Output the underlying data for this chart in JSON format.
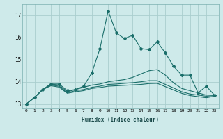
{
  "xlabel": "Humidex (Indice chaleur)",
  "ylabel": "",
  "bg_color": "#ceeaea",
  "grid_color": "#aacece",
  "line_color": "#1a6e6a",
  "xlim": [
    -0.5,
    23.5
  ],
  "ylim": [
    12.8,
    17.5
  ],
  "yticks": [
    13,
    14,
    15,
    16,
    17
  ],
  "xticks": [
    0,
    1,
    2,
    3,
    4,
    5,
    6,
    7,
    8,
    9,
    10,
    11,
    12,
    13,
    14,
    15,
    16,
    17,
    18,
    19,
    20,
    21,
    22,
    23
  ],
  "series": [
    [
      13.0,
      13.3,
      13.65,
      13.9,
      13.9,
      13.6,
      13.65,
      13.8,
      14.4,
      15.5,
      17.2,
      16.2,
      15.95,
      16.1,
      15.5,
      15.45,
      15.8,
      15.3,
      14.7,
      14.3,
      14.3,
      13.5,
      13.8,
      13.4
    ],
    [
      13.0,
      13.3,
      13.65,
      13.9,
      13.85,
      13.55,
      13.65,
      13.75,
      13.85,
      13.9,
      14.0,
      14.05,
      14.1,
      14.2,
      14.35,
      14.5,
      14.55,
      14.3,
      13.95,
      13.7,
      13.6,
      13.5,
      13.4,
      13.4
    ],
    [
      13.0,
      13.3,
      13.65,
      13.85,
      13.8,
      13.5,
      13.6,
      13.65,
      13.75,
      13.8,
      13.88,
      13.9,
      13.93,
      13.96,
      14.0,
      14.05,
      14.05,
      13.88,
      13.72,
      13.55,
      13.45,
      13.4,
      13.35,
      13.38
    ],
    [
      13.0,
      13.3,
      13.65,
      13.82,
      13.76,
      13.48,
      13.55,
      13.6,
      13.7,
      13.74,
      13.8,
      13.82,
      13.84,
      13.86,
      13.88,
      13.92,
      13.93,
      13.78,
      13.63,
      13.48,
      13.38,
      13.33,
      13.28,
      13.35
    ]
  ]
}
